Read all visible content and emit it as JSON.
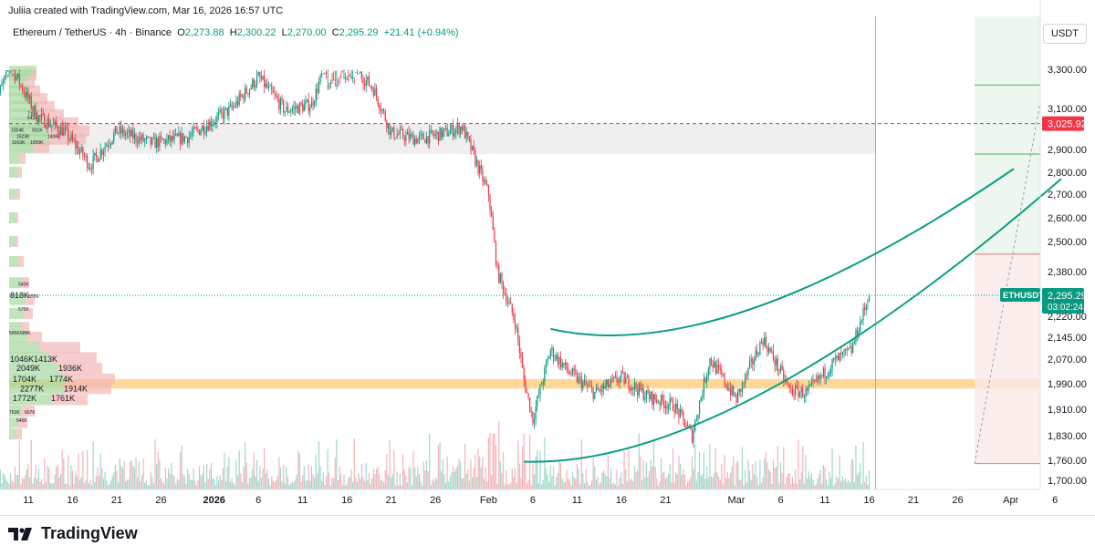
{
  "header": {
    "credit": "Juliia created with TradingView.com, Mar 16, 2026 16:57 UTC",
    "symbol": "Ethereum / TetherUS · 4h · Binance",
    "o_label": "O",
    "o_value": "2,273.88",
    "h_label": "H",
    "h_value": "2,300.22",
    "l_label": "L",
    "l_value": "2,270.00",
    "c_label": "C",
    "c_value": "2,295.29",
    "change": "+21.41 (+0.94%)"
  },
  "price_axis": {
    "currency": "USDT",
    "ticks": [
      "3,300.00",
      "3,100.00",
      "2,900.00",
      "2,800.00",
      "2,700.00",
      "2,600.00",
      "2,500.00",
      "2,380.00",
      "2,220.00",
      "2,145.00",
      "2,070.00",
      "1,990.00",
      "1,910.00",
      "1,830.00",
      "1,760.00",
      "1,700.00"
    ],
    "resistance_label": "3,025.92",
    "last_price_symbol": "ETHUSDT",
    "last_price_value": "2,295.29",
    "countdown": "03:02:24"
  },
  "time_axis": {
    "ticks": [
      "11",
      "16",
      "21",
      "26",
      "2026",
      "6",
      "11",
      "16",
      "21",
      "26",
      "Feb",
      "6",
      "11",
      "16",
      "21",
      "Mar",
      "6",
      "11",
      "16",
      "21",
      "26",
      "Apr",
      "6"
    ]
  },
  "volume_profile": {
    "labels": [
      "818K",
      "572K",
      "1046K",
      "1413K",
      "2049K",
      "1936K",
      "1704K",
      "1774K",
      "2277K",
      "1914K",
      "1772K",
      "1761K",
      "763K",
      "607K",
      "1004K",
      "931K",
      "1523K",
      "1406K",
      "1010K",
      "1005K",
      "540K",
      "575K",
      "605K",
      "688K",
      "546K",
      "713K",
      "642K"
    ]
  },
  "brand": {
    "name": "TradingView"
  },
  "colors": {
    "up": "#089981",
    "down": "#f23645",
    "channel": "#0a9e83",
    "zone_gray": "#ebebeb",
    "zone_orange": "#ffc977",
    "resistance": "#f23645",
    "vertical_line": "#f7a600"
  },
  "chart_data": {
    "type": "candlestick",
    "symbol": "ETHUSDT",
    "timeframe": "4h",
    "close_path": [
      {
        "date": "2025-12-07",
        "close": 3100
      },
      {
        "date": "2025-12-09",
        "close": 3320
      },
      {
        "date": "2025-12-12",
        "close": 3060
      },
      {
        "date": "2025-12-15",
        "close": 2990
      },
      {
        "date": "2025-12-18",
        "close": 2830
      },
      {
        "date": "2025-12-21",
        "close": 2990
      },
      {
        "date": "2025-12-25",
        "close": 2930
      },
      {
        "date": "2025-12-29",
        "close": 2960
      },
      {
        "date": "2026-01-03",
        "close": 3100
      },
      {
        "date": "2026-01-06",
        "close": 3260
      },
      {
        "date": "2026-01-09",
        "close": 3090
      },
      {
        "date": "2026-01-12",
        "close": 3120
      },
      {
        "date": "2026-01-14",
        "close": 3370
      },
      {
        "date": "2026-01-17",
        "close": 3300
      },
      {
        "date": "2026-01-19",
        "close": 3200
      },
      {
        "date": "2026-01-21",
        "close": 2980
      },
      {
        "date": "2026-01-24",
        "close": 2950
      },
      {
        "date": "2026-01-27",
        "close": 2980
      },
      {
        "date": "2026-01-29",
        "close": 3010
      },
      {
        "date": "2026-02-01",
        "close": 2700
      },
      {
        "date": "2026-02-02",
        "close": 2380
      },
      {
        "date": "2026-02-04",
        "close": 2200
      },
      {
        "date": "2026-02-05",
        "close": 2000
      },
      {
        "date": "2026-02-06",
        "close": 1880
      },
      {
        "date": "2026-02-08",
        "close": 2100
      },
      {
        "date": "2026-02-10",
        "close": 2030
      },
      {
        "date": "2026-02-13",
        "close": 1960
      },
      {
        "date": "2026-02-16",
        "close": 2010
      },
      {
        "date": "2026-02-19",
        "close": 1950
      },
      {
        "date": "2026-02-22",
        "close": 1920
      },
      {
        "date": "2026-02-24",
        "close": 1830
      },
      {
        "date": "2026-02-26",
        "close": 2070
      },
      {
        "date": "2026-03-01",
        "close": 1940
      },
      {
        "date": "2026-03-04",
        "close": 2140
      },
      {
        "date": "2026-03-07",
        "close": 1970
      },
      {
        "date": "2026-03-09",
        "close": 1960
      },
      {
        "date": "2026-03-12",
        "close": 2060
      },
      {
        "date": "2026-03-14",
        "close": 2100
      },
      {
        "date": "2026-03-16",
        "close": 2295
      }
    ],
    "last": {
      "open": 2273.88,
      "high": 2300.22,
      "low": 2270.0,
      "close": 2295.29
    },
    "levels": {
      "resistance": 3025.92,
      "gray_zone": [
        2880,
        3025
      ],
      "support_zone": [
        1975,
        2005
      ]
    },
    "projection": {
      "target": 3130,
      "stop": 1750,
      "entry": 2450,
      "tp_line": 3220,
      "mid_line": 2880
    }
  }
}
